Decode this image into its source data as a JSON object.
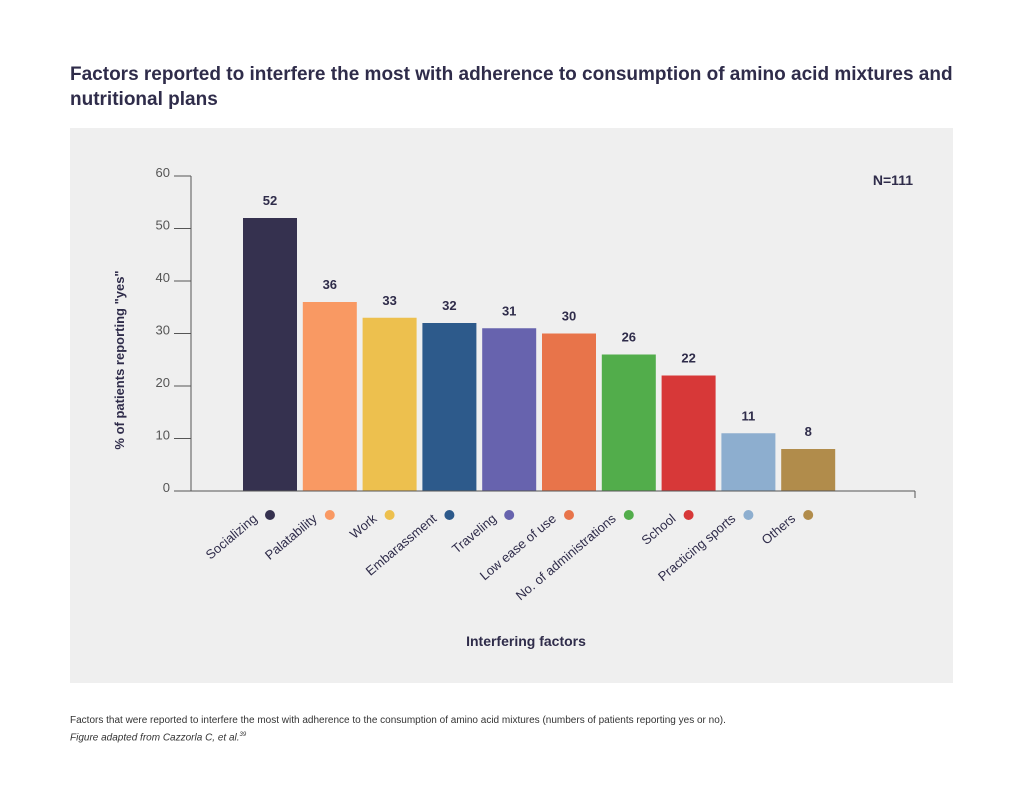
{
  "title": "Factors reported to interfere the most with adherence to consumption of amino acid mixtures and nutritional plans",
  "caption": {
    "text": "Factors that were reported to interfere the most with adherence to the consumption of amino acid mixtures (numbers of patients reporting yes or no).",
    "adapted": "Figure adapted from Cazzorla C, et al.",
    "ref": "39"
  },
  "chart_data": {
    "type": "bar",
    "title": "Factors reported to interfere the most with adherence to consumption of amino acid mixtures and nutritional plans",
    "xlabel": "Interfering factors",
    "ylabel": "% of patients reporting \"yes\"",
    "ylim": [
      0,
      60
    ],
    "yticks": [
      0,
      10,
      20,
      30,
      40,
      50,
      60
    ],
    "annotation": "N=111",
    "grid": false,
    "categories": [
      "Socializing",
      "Palatability",
      "Work",
      "Embarassment",
      "Traveling",
      "Low ease of use",
      "No. of administrations",
      "School",
      "Practicing sports",
      "Others"
    ],
    "values": [
      52,
      36,
      33,
      32,
      31,
      30,
      26,
      22,
      11,
      8
    ],
    "colors": [
      "#35314f",
      "#f99963",
      "#edc04e",
      "#2d5a8b",
      "#6763ae",
      "#e8744a",
      "#52ad4b",
      "#d73838",
      "#8daecf",
      "#b18c4b"
    ]
  }
}
